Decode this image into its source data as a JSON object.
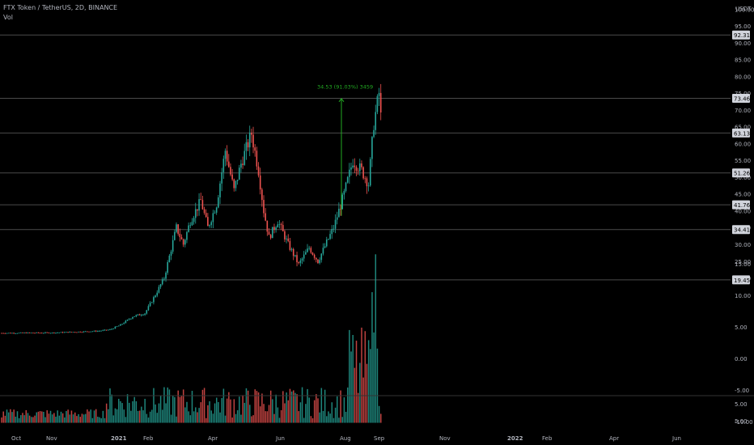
{
  "header": {
    "title": "FTX Token / TetherUS, 2D, BINANCE",
    "volume_label": "Vol"
  },
  "colors": {
    "up": "#26a69a",
    "down": "#ef5350",
    "measure": "#22aa22",
    "hline": "#4a4a4a",
    "text": "#b2b5be"
  },
  "chart_data": {
    "type": "candlestick",
    "currency": "USDT",
    "x_ticks": [
      "Oct",
      "Nov",
      "2021",
      "Feb",
      "Apr",
      "Jun",
      "Aug",
      "Sep",
      "Nov",
      "2022",
      "Feb",
      "Apr",
      "Jun"
    ],
    "y_ticks": [
      "100.00",
      "95.00",
      "90.00",
      "85.00",
      "80.00",
      "75.00",
      "70.00",
      "65.00",
      "60.00",
      "55.00",
      "50.00",
      "45.00",
      "40.00",
      "35.00",
      "30.00",
      "25.00",
      "20.00"
    ],
    "y_tick_values": [
      100,
      95,
      90,
      85,
      80,
      75,
      70,
      65,
      60,
      55,
      50,
      45,
      40,
      35,
      30,
      25,
      20
    ],
    "ylim": [
      17,
      102
    ],
    "horizontal_levels": [
      "92.31",
      "73.46",
      "63.13",
      "51.26",
      "41.76",
      "34.41",
      "19.45"
    ],
    "measure_annotation": "34.53 (91.03%) 3459",
    "volume_ticks": [
      "15.00",
      "10.00",
      "5.00",
      "0.00",
      "-5.00",
      "-10.00",
      "5.00",
      "5.00"
    ],
    "series": [
      {
        "name": "Price",
        "anchors": [
          [
            0,
            3.6
          ],
          [
            30,
            3.7
          ],
          [
            55,
            4.2
          ],
          [
            62,
            4.6
          ],
          [
            68,
            6
          ],
          [
            75,
            8.5
          ],
          [
            82,
            9.5
          ],
          [
            88,
            15
          ],
          [
            93,
            20
          ],
          [
            100,
            35
          ],
          [
            104,
            30
          ],
          [
            108,
            37
          ],
          [
            114,
            43
          ],
          [
            118,
            35
          ],
          [
            123,
            42
          ],
          [
            128,
            58
          ],
          [
            133,
            46
          ],
          [
            137,
            54
          ],
          [
            143,
            63
          ],
          [
            147,
            52
          ],
          [
            150,
            40
          ],
          [
            153,
            32
          ],
          [
            158,
            37
          ],
          [
            164,
            30
          ],
          [
            170,
            24
          ],
          [
            176,
            29
          ],
          [
            181,
            25
          ],
          [
            190,
            35
          ],
          [
            196,
            45
          ],
          [
            201,
            55
          ],
          [
            206,
            52
          ],
          [
            210,
            48
          ],
          [
            213,
            66
          ],
          [
            216,
            75
          ],
          [
            217,
            68
          ]
        ]
      }
    ]
  }
}
